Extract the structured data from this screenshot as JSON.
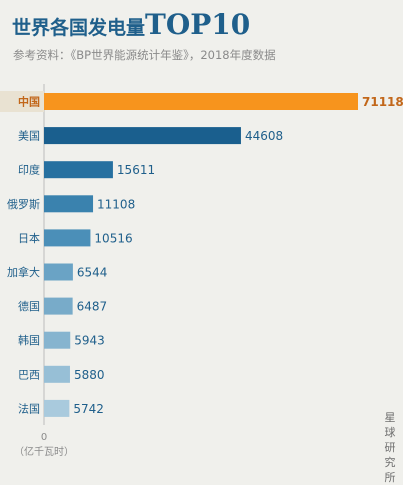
{
  "title": {
    "cn": "世界各国发电量",
    "en": "TOP10"
  },
  "subtitle": "参考资料：《BP世界能源统计年鉴》，2018年度数据",
  "watermark": "星球研究所",
  "chart_data": {
    "type": "bar",
    "orientation": "horizontal",
    "categories": [
      "中国",
      "美国",
      "印度",
      "俄罗斯",
      "日本",
      "加拿大",
      "德国",
      "韩国",
      "巴西",
      "法国"
    ],
    "values": [
      71118,
      44608,
      15611,
      11108,
      10516,
      6544,
      6487,
      5943,
      5880,
      5742
    ],
    "axis_zero_label": "0",
    "unit_label": "（亿千瓦时）",
    "colors": [
      "#f7941d",
      "#1a5f8e",
      "#2670a0",
      "#3a82ae",
      "#4b8fb8",
      "#6aa3c5",
      "#78abc9",
      "#86b4cf",
      "#97bfd6",
      "#a9cadd"
    ],
    "highlight_label_color": "#c2671a",
    "default_label_color": "#1f5f8b"
  }
}
